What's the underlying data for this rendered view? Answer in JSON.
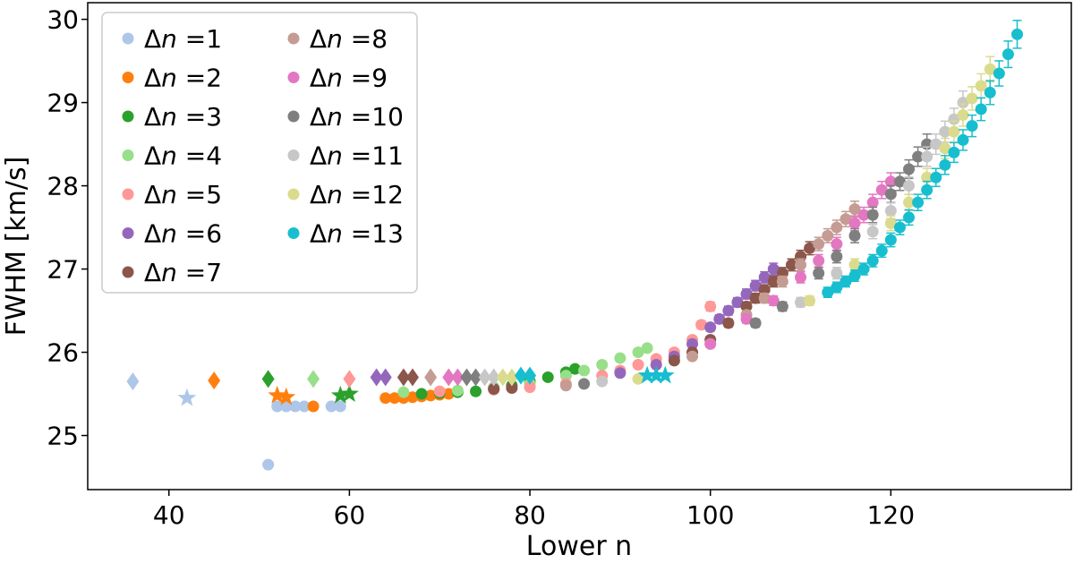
{
  "chart_data": {
    "type": "scatter",
    "title": "",
    "xlabel": "Lower n",
    "ylabel": "FWHM [km/s]",
    "xlim": [
      31,
      140
    ],
    "ylim": [
      24.35,
      30.2
    ],
    "xticks": [
      40,
      60,
      80,
      100,
      120
    ],
    "yticks": [
      25,
      26,
      27,
      28,
      29,
      30
    ],
    "grid": false,
    "legend_position": "top-left",
    "series": [
      {
        "name": "Δn =1",
        "label_prefix": "Δ",
        "label_var": "n",
        "label_suffix": " =1",
        "color": "#aec7e8",
        "points": [
          {
            "x": 36,
            "y": 25.65,
            "m": "diamond"
          },
          {
            "x": 42,
            "y": 25.45,
            "m": "star"
          },
          {
            "x": 51,
            "y": 24.65
          },
          {
            "x": 52,
            "y": 25.35
          },
          {
            "x": 53,
            "y": 25.35
          },
          {
            "x": 54,
            "y": 25.35
          },
          {
            "x": 55,
            "y": 25.35
          },
          {
            "x": 58,
            "y": 25.35
          },
          {
            "x": 59,
            "y": 25.35
          }
        ]
      },
      {
        "name": "Δn =2",
        "label_prefix": "Δ",
        "label_var": "n",
        "label_suffix": " =2",
        "color": "#ff7f0e",
        "points": [
          {
            "x": 45,
            "y": 25.66,
            "m": "diamond"
          },
          {
            "x": 52,
            "y": 25.48,
            "m": "star"
          },
          {
            "x": 53,
            "y": 25.46,
            "m": "star"
          },
          {
            "x": 56,
            "y": 25.35
          },
          {
            "x": 64,
            "y": 25.45
          },
          {
            "x": 65,
            "y": 25.45
          },
          {
            "x": 66,
            "y": 25.45
          },
          {
            "x": 67,
            "y": 25.46
          },
          {
            "x": 68,
            "y": 25.47
          },
          {
            "x": 69,
            "y": 25.48
          },
          {
            "x": 70,
            "y": 25.49
          },
          {
            "x": 71,
            "y": 25.5
          }
        ]
      },
      {
        "name": "Δn =3",
        "label_prefix": "Δ",
        "label_var": "n",
        "label_suffix": " =3",
        "color": "#2ca02c",
        "points": [
          {
            "x": 51,
            "y": 25.68,
            "m": "diamond"
          },
          {
            "x": 59,
            "y": 25.48,
            "m": "star"
          },
          {
            "x": 60,
            "y": 25.5,
            "m": "star"
          },
          {
            "x": 68,
            "y": 25.5
          },
          {
            "x": 70,
            "y": 25.51
          },
          {
            "x": 72,
            "y": 25.52
          },
          {
            "x": 74,
            "y": 25.53
          },
          {
            "x": 76,
            "y": 25.56
          },
          {
            "x": 78,
            "y": 25.6
          },
          {
            "x": 80,
            "y": 25.65
          },
          {
            "x": 82,
            "y": 25.7
          },
          {
            "x": 84,
            "y": 25.76
          },
          {
            "x": 85,
            "y": 25.8
          }
        ]
      },
      {
        "name": "Δn =4",
        "label_prefix": "Δ",
        "label_var": "n",
        "label_suffix": " =4",
        "color": "#98df8a",
        "points": [
          {
            "x": 56,
            "y": 25.68,
            "m": "diamond"
          },
          {
            "x": 66,
            "y": 25.52
          },
          {
            "x": 72,
            "y": 25.54
          },
          {
            "x": 76,
            "y": 25.58
          },
          {
            "x": 80,
            "y": 25.62
          },
          {
            "x": 84,
            "y": 25.72
          },
          {
            "x": 86,
            "y": 25.78
          },
          {
            "x": 88,
            "y": 25.85
          },
          {
            "x": 90,
            "y": 25.93
          },
          {
            "x": 92,
            "y": 26.0
          },
          {
            "x": 93,
            "y": 26.05
          }
        ]
      },
      {
        "name": "Δn =5",
        "label_prefix": "Δ",
        "label_var": "n",
        "label_suffix": " =5",
        "color": "#ff9896",
        "points": [
          {
            "x": 60,
            "y": 25.68,
            "m": "diamond"
          },
          {
            "x": 70,
            "y": 25.53
          },
          {
            "x": 76,
            "y": 25.55
          },
          {
            "x": 80,
            "y": 25.58
          },
          {
            "x": 84,
            "y": 25.62
          },
          {
            "x": 88,
            "y": 25.72
          },
          {
            "x": 90,
            "y": 25.78
          },
          {
            "x": 92,
            "y": 25.85
          },
          {
            "x": 94,
            "y": 25.92
          },
          {
            "x": 96,
            "y": 26.0
          },
          {
            "x": 98,
            "y": 26.15
          },
          {
            "x": 99,
            "y": 26.33
          },
          {
            "x": 100,
            "y": 26.55
          }
        ]
      },
      {
        "name": "Δn =6",
        "label_prefix": "Δ",
        "label_var": "n",
        "label_suffix": " =6",
        "color": "#9467bd",
        "points": [
          {
            "x": 63,
            "y": 25.7,
            "m": "diamond"
          },
          {
            "x": 64,
            "y": 25.7,
            "m": "diamond"
          },
          {
            "x": 90,
            "y": 25.75
          },
          {
            "x": 94,
            "y": 25.85
          },
          {
            "x": 96,
            "y": 25.95
          },
          {
            "x": 98,
            "y": 26.1
          },
          {
            "x": 100,
            "y": 26.3
          },
          {
            "x": 101,
            "y": 26.4
          },
          {
            "x": 102,
            "y": 26.5
          },
          {
            "x": 103,
            "y": 26.6
          },
          {
            "x": 104,
            "y": 26.7
          },
          {
            "x": 105,
            "y": 26.8
          },
          {
            "x": 106,
            "y": 26.9
          },
          {
            "x": 107,
            "y": 27.0
          }
        ]
      },
      {
        "name": "Δn =7",
        "label_prefix": "Δ",
        "label_var": "n",
        "label_suffix": " =7",
        "color": "#8c564b",
        "points": [
          {
            "x": 66,
            "y": 25.7,
            "m": "diamond"
          },
          {
            "x": 67,
            "y": 25.7,
            "m": "diamond"
          },
          {
            "x": 76,
            "y": 25.56
          },
          {
            "x": 78,
            "y": 25.57
          },
          {
            "x": 96,
            "y": 25.9
          },
          {
            "x": 98,
            "y": 26.0
          },
          {
            "x": 100,
            "y": 26.15
          },
          {
            "x": 102,
            "y": 26.35
          },
          {
            "x": 104,
            "y": 26.55
          },
          {
            "x": 105,
            "y": 26.65
          },
          {
            "x": 106,
            "y": 26.75
          },
          {
            "x": 107,
            "y": 26.85
          },
          {
            "x": 108,
            "y": 26.95
          },
          {
            "x": 109,
            "y": 27.05
          },
          {
            "x": 110,
            "y": 27.15
          },
          {
            "x": 111,
            "y": 27.25
          }
        ]
      },
      {
        "name": "Δn =8",
        "label_prefix": "Δ",
        "label_var": "n",
        "label_suffix": " =8",
        "color": "#c49c94",
        "points": [
          {
            "x": 69,
            "y": 25.7,
            "m": "diamond"
          },
          {
            "x": 84,
            "y": 25.6
          },
          {
            "x": 98,
            "y": 25.95
          },
          {
            "x": 100,
            "y": 26.1
          },
          {
            "x": 104,
            "y": 26.45
          },
          {
            "x": 106,
            "y": 26.65
          },
          {
            "x": 108,
            "y": 26.85
          },
          {
            "x": 110,
            "y": 27.05
          },
          {
            "x": 112,
            "y": 27.3
          },
          {
            "x": 113,
            "y": 27.4
          },
          {
            "x": 114,
            "y": 27.5
          },
          {
            "x": 115,
            "y": 27.6
          },
          {
            "x": 116,
            "y": 27.72
          }
        ]
      },
      {
        "name": "Δn =9",
        "label_prefix": "Δ",
        "label_var": "n",
        "label_suffix": " =9",
        "color": "#e377c2",
        "points": [
          {
            "x": 71,
            "y": 25.7,
            "m": "diamond"
          },
          {
            "x": 72,
            "y": 25.7,
            "m": "diamond"
          },
          {
            "x": 100,
            "y": 26.1
          },
          {
            "x": 104,
            "y": 26.4
          },
          {
            "x": 107,
            "y": 26.62
          },
          {
            "x": 110,
            "y": 26.9
          },
          {
            "x": 112,
            "y": 27.1
          },
          {
            "x": 114,
            "y": 27.3
          },
          {
            "x": 116,
            "y": 27.55
          },
          {
            "x": 117,
            "y": 27.65
          },
          {
            "x": 118,
            "y": 27.8
          },
          {
            "x": 119,
            "y": 27.95
          },
          {
            "x": 120,
            "y": 28.05
          }
        ]
      },
      {
        "name": "Δn =10",
        "label_prefix": "Δ",
        "label_var": "n",
        "label_suffix": " =10",
        "color": "#7f7f7f",
        "points": [
          {
            "x": 73,
            "y": 25.7,
            "m": "diamond"
          },
          {
            "x": 74,
            "y": 25.7,
            "m": "diamond"
          },
          {
            "x": 86,
            "y": 25.62
          },
          {
            "x": 105,
            "y": 26.35
          },
          {
            "x": 108,
            "y": 26.55
          },
          {
            "x": 112,
            "y": 26.95
          },
          {
            "x": 114,
            "y": 27.15
          },
          {
            "x": 116,
            "y": 27.4
          },
          {
            "x": 118,
            "y": 27.65
          },
          {
            "x": 120,
            "y": 27.9
          },
          {
            "x": 121,
            "y": 28.05
          },
          {
            "x": 122,
            "y": 28.2
          },
          {
            "x": 123,
            "y": 28.35
          },
          {
            "x": 124,
            "y": 28.5
          }
        ]
      },
      {
        "name": "Δn =11",
        "label_prefix": "Δ",
        "label_var": "n",
        "label_suffix": " =11",
        "color": "#c7c7c7",
        "points": [
          {
            "x": 75,
            "y": 25.7,
            "m": "diamond"
          },
          {
            "x": 76,
            "y": 25.7,
            "m": "diamond"
          },
          {
            "x": 88,
            "y": 25.65
          },
          {
            "x": 110,
            "y": 26.6
          },
          {
            "x": 114,
            "y": 26.95
          },
          {
            "x": 118,
            "y": 27.45
          },
          {
            "x": 120,
            "y": 27.7
          },
          {
            "x": 122,
            "y": 28.0
          },
          {
            "x": 124,
            "y": 28.35
          },
          {
            "x": 125,
            "y": 28.5
          },
          {
            "x": 126,
            "y": 28.65
          },
          {
            "x": 127,
            "y": 28.8
          },
          {
            "x": 128,
            "y": 29.0
          }
        ]
      },
      {
        "name": "Δn =12",
        "label_prefix": "Δ",
        "label_var": "n",
        "label_suffix": " =12",
        "color": "#dbdb8d",
        "points": [
          {
            "x": 77,
            "y": 25.7,
            "m": "diamond"
          },
          {
            "x": 78,
            "y": 25.7,
            "m": "diamond"
          },
          {
            "x": 92,
            "y": 25.68
          },
          {
            "x": 111,
            "y": 26.62
          },
          {
            "x": 116,
            "y": 27.05
          },
          {
            "x": 120,
            "y": 27.55
          },
          {
            "x": 122,
            "y": 27.8
          },
          {
            "x": 124,
            "y": 28.1
          },
          {
            "x": 126,
            "y": 28.45
          },
          {
            "x": 127,
            "y": 28.65
          },
          {
            "x": 128,
            "y": 28.85
          },
          {
            "x": 129,
            "y": 29.05
          },
          {
            "x": 130,
            "y": 29.2
          },
          {
            "x": 131,
            "y": 29.4
          }
        ]
      },
      {
        "name": "Δn =13",
        "label_prefix": "Δ",
        "label_var": "n",
        "label_suffix": " =13",
        "color": "#17becf",
        "points": [
          {
            "x": 79,
            "y": 25.72,
            "m": "diamond"
          },
          {
            "x": 80,
            "y": 25.72,
            "m": "diamond"
          },
          {
            "x": 93,
            "y": 25.72,
            "m": "star"
          },
          {
            "x": 94,
            "y": 25.72,
            "m": "star"
          },
          {
            "x": 95,
            "y": 25.72,
            "m": "star"
          },
          {
            "x": 113,
            "y": 26.72
          },
          {
            "x": 114,
            "y": 26.78
          },
          {
            "x": 115,
            "y": 26.85
          },
          {
            "x": 116,
            "y": 26.92
          },
          {
            "x": 117,
            "y": 27.0
          },
          {
            "x": 118,
            "y": 27.1
          },
          {
            "x": 119,
            "y": 27.22
          },
          {
            "x": 120,
            "y": 27.35
          },
          {
            "x": 121,
            "y": 27.5
          },
          {
            "x": 122,
            "y": 27.62
          },
          {
            "x": 123,
            "y": 27.8
          },
          {
            "x": 124,
            "y": 27.95
          },
          {
            "x": 125,
            "y": 28.1
          },
          {
            "x": 126,
            "y": 28.25
          },
          {
            "x": 127,
            "y": 28.4
          },
          {
            "x": 128,
            "y": 28.55
          },
          {
            "x": 129,
            "y": 28.72
          },
          {
            "x": 130,
            "y": 28.92
          },
          {
            "x": 131,
            "y": 29.12
          },
          {
            "x": 132,
            "y": 29.35
          },
          {
            "x": 133,
            "y": 29.58
          },
          {
            "x": 134,
            "y": 29.82
          }
        ]
      }
    ]
  }
}
